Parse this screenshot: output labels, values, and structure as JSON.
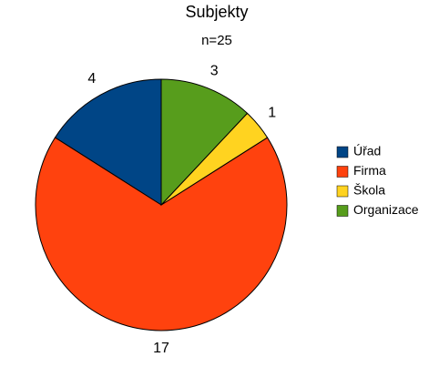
{
  "chart_data": {
    "type": "pie",
    "title": "Subjekty",
    "subtitle": "n=25",
    "categories": [
      "Úřad",
      "Firma",
      "Škola",
      "Organizace"
    ],
    "values": [
      4,
      17,
      1,
      3
    ],
    "colors": [
      "#004586",
      "#ff420e",
      "#ffd320",
      "#579d1c"
    ],
    "legend": "right"
  }
}
